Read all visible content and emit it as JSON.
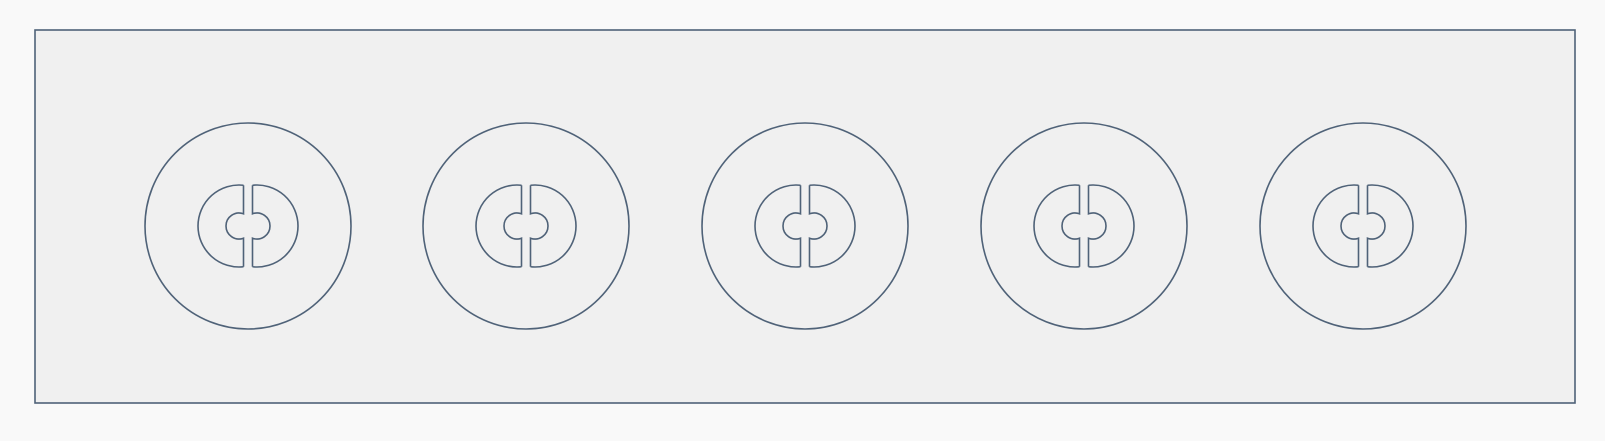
{
  "drawing": {
    "background_color": "#f9f9f9",
    "panel_fill": "#f0f0f0",
    "stroke_color": "#4f6278",
    "feature_count": 5,
    "features": [
      {
        "type": "mounting-hole",
        "outer": "circle",
        "inner": "circle",
        "center": "keyhole-slot"
      },
      {
        "type": "mounting-hole",
        "outer": "circle",
        "inner": "circle",
        "center": "keyhole-slot"
      },
      {
        "type": "mounting-hole",
        "outer": "circle",
        "inner": "circle",
        "center": "keyhole-slot"
      },
      {
        "type": "mounting-hole",
        "outer": "circle",
        "inner": "circle",
        "center": "keyhole-slot"
      },
      {
        "type": "mounting-hole",
        "outer": "circle",
        "inner": "circle",
        "center": "keyhole-slot"
      }
    ]
  }
}
